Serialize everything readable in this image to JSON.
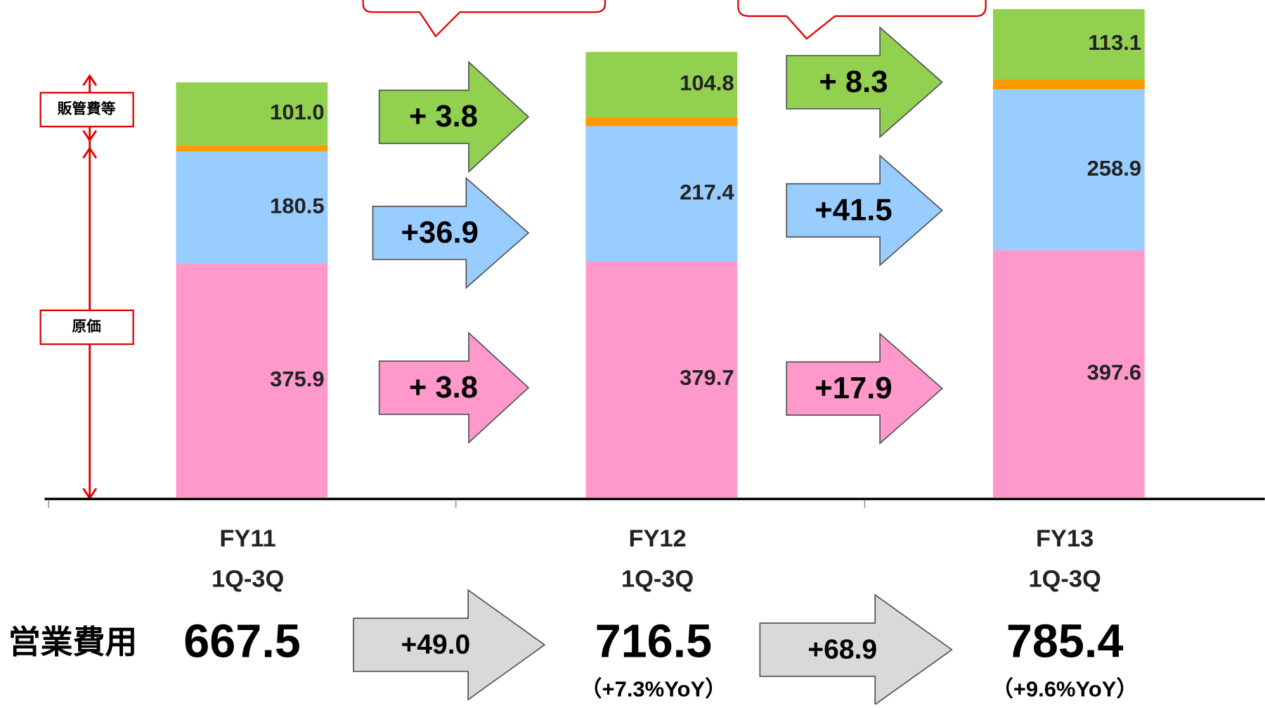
{
  "chart_data": {
    "type": "bar",
    "stacked": true,
    "categories": [
      [
        "FY11",
        "1Q-3Q"
      ],
      [
        "FY12",
        "1Q-3Q"
      ],
      [
        "FY13",
        "1Q-3Q"
      ]
    ],
    "series": [
      {
        "color": "#ff99cc",
        "values": [
          375.9,
          379.7,
          397.6
        ],
        "value_labels": [
          "375.9",
          "379.7",
          "397.6"
        ]
      },
      {
        "color": "#99ccff",
        "values": [
          180.5,
          217.4,
          258.9
        ],
        "value_labels": [
          "180.5",
          "217.4",
          "258.9"
        ]
      },
      {
        "color": "#ff9900",
        "values": [
          10.1,
          14.6,
          15.8
        ]
      },
      {
        "color": "#92d050",
        "values": [
          101.0,
          104.8,
          113.1
        ],
        "value_labels": [
          "101.0",
          "104.8",
          "113.1"
        ]
      }
    ],
    "ylim": [
      0,
      800
    ],
    "brackets": [
      "販管費等",
      "原価"
    ],
    "changes": [
      {
        "green": "+ 3.8",
        "blue": "+36.9",
        "pink": "+ 3.8"
      },
      {
        "green": "+ 8.3",
        "blue": "+41.5",
        "pink": "+17.9"
      }
    ],
    "totals": {
      "label": "営業費用",
      "values": [
        667.5,
        716.5,
        785.4
      ],
      "changes": [
        "+49.0",
        "+68.9"
      ],
      "yoy": [
        "（+7.3%YoY）",
        "（+9.6%YoY）"
      ]
    }
  }
}
